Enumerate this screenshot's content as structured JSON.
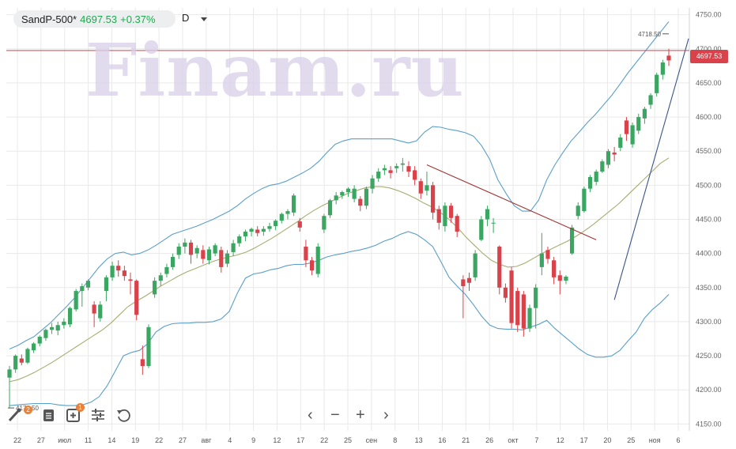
{
  "header": {
    "symbol": "SandP-500*",
    "price": "4697.53",
    "change": "+0.37%",
    "timeframe": "D"
  },
  "watermark": "Finam.ru",
  "colors": {
    "up": "#3aa661",
    "down": "#d9424a",
    "bollinger": "#5a9fc8",
    "ma": "#a5ad70",
    "trend_down": "#a03434",
    "trend_up": "#3a5588",
    "price_line": "#d9424a",
    "grid": "#e9e9e9"
  },
  "toolbar": {
    "badge_left": "2",
    "badge_mid": "1",
    "zoom_out": "−",
    "zoom_in": "+",
    "prev": "‹",
    "next": "›"
  },
  "chart_data": {
    "type": "candlestick",
    "y_ticks": [
      "4750.00",
      "4700.00",
      "4650.00",
      "4600.00",
      "4550.00",
      "4500.00",
      "4450.00",
      "4400.00",
      "4350.00",
      "4300.00",
      "4250.00",
      "4200.00",
      "4150.00"
    ],
    "ylim": [
      4140,
      4760
    ],
    "x_labels": [
      "22",
      "27",
      "июл",
      "11",
      "14",
      "19",
      "22",
      "27",
      "авг",
      "4",
      "9",
      "12",
      "17",
      "22",
      "25",
      "сен",
      "8",
      "13",
      "16",
      "21",
      "26",
      "окт",
      "7",
      "12",
      "17",
      "20",
      "25",
      "ноя",
      "6"
    ],
    "current_price_label": "4697.53",
    "high_marker_label": "4718.50",
    "low_marker_label": "4173.50",
    "candles": [
      [
        4218,
        4230,
        4173,
        4235
      ],
      [
        4230,
        4250,
        4225,
        4252
      ],
      [
        4246,
        4240,
        4236,
        4252
      ],
      [
        4240,
        4260,
        4238,
        4262
      ],
      [
        4258,
        4268,
        4254,
        4270
      ],
      [
        4268,
        4278,
        4264,
        4280
      ],
      [
        4276,
        4288,
        4272,
        4290
      ],
      [
        4288,
        4292,
        4282,
        4298
      ],
      [
        4287,
        4295,
        4280,
        4300
      ],
      [
        4295,
        4300,
        4290,
        4305
      ],
      [
        4296,
        4320,
        4292,
        4322
      ],
      [
        4318,
        4345,
        4315,
        4348
      ],
      [
        4345,
        4352,
        4322,
        4356
      ],
      [
        4350,
        4360,
        4346,
        4362
      ],
      [
        4325,
        4312,
        4292,
        4330
      ],
      [
        4305,
        4325,
        4300,
        4330
      ],
      [
        4345,
        4365,
        4330,
        4368
      ],
      [
        4365,
        4382,
        4360,
        4388
      ],
      [
        4382,
        4375,
        4366,
        4390
      ],
      [
        4375,
        4367,
        4360,
        4382
      ],
      [
        4362,
        4360,
        4340,
        4372
      ],
      [
        4360,
        4310,
        4302,
        4362
      ],
      [
        4245,
        4235,
        4222,
        4265
      ],
      [
        4235,
        4292,
        4232,
        4296
      ],
      [
        4340,
        4360,
        4335,
        4365
      ],
      [
        4360,
        4368,
        4352,
        4372
      ],
      [
        4370,
        4380,
        4365,
        4385
      ],
      [
        4380,
        4395,
        4376,
        4400
      ],
      [
        4398,
        4410,
        4392,
        4415
      ],
      [
        4410,
        4416,
        4400,
        4422
      ],
      [
        4416,
        4398,
        4385,
        4420
      ],
      [
        4400,
        4408,
        4393,
        4412
      ],
      [
        4405,
        4392,
        4385,
        4412
      ],
      [
        4390,
        4406,
        4384,
        4410
      ],
      [
        4400,
        4412,
        4396,
        4415
      ],
      [
        4405,
        4380,
        4372,
        4410
      ],
      [
        4385,
        4400,
        4380,
        4405
      ],
      [
        4402,
        4415,
        4396,
        4420
      ],
      [
        4415,
        4425,
        4410,
        4428
      ],
      [
        4425,
        4432,
        4418,
        4435
      ],
      [
        4432,
        4436,
        4425,
        4438
      ],
      [
        4435,
        4430,
        4425,
        4440
      ],
      [
        4432,
        4436,
        4426,
        4440
      ],
      [
        4436,
        4440,
        4432,
        4445
      ],
      [
        4440,
        4448,
        4434,
        4450
      ],
      [
        4448,
        4458,
        4444,
        4460
      ],
      [
        4458,
        4462,
        4450,
        4465
      ],
      [
        4460,
        4485,
        4455,
        4488
      ],
      [
        4447,
        4438,
        4432,
        4452
      ],
      [
        4410,
        4390,
        4380,
        4420
      ],
      [
        4390,
        4375,
        4368,
        4395
      ],
      [
        4370,
        4410,
        4365,
        4415
      ],
      [
        4435,
        4455,
        4430,
        4458
      ],
      [
        4456,
        4478,
        4452,
        4480
      ],
      [
        4478,
        4485,
        4472,
        4490
      ],
      [
        4485,
        4490,
        4480,
        4492
      ],
      [
        4490,
        4495,
        4483,
        4497
      ],
      [
        4480,
        4495,
        4475,
        4500
      ],
      [
        4480,
        4470,
        4462,
        4484
      ],
      [
        4470,
        4495,
        4465,
        4498
      ],
      [
        4495,
        4510,
        4488,
        4515
      ],
      [
        4510,
        4520,
        4505,
        4525
      ],
      [
        4522,
        4525,
        4515,
        4530
      ],
      [
        4522,
        4518,
        4510,
        4528
      ],
      [
        4525,
        4528,
        4518,
        4532
      ],
      [
        4530,
        4532,
        4520,
        4540
      ],
      [
        4528,
        4520,
        4512,
        4535
      ],
      [
        4522,
        4508,
        4500,
        4528
      ],
      [
        4506,
        4488,
        4480,
        4510
      ],
      [
        4492,
        4500,
        4485,
        4520
      ],
      [
        4500,
        4460,
        4450,
        4505
      ],
      [
        4465,
        4445,
        4435,
        4470
      ],
      [
        4440,
        4470,
        4432,
        4475
      ],
      [
        4470,
        4452,
        4445,
        4474
      ],
      [
        4455,
        4432,
        4424,
        4458
      ],
      [
        4362,
        4352,
        4305,
        4368
      ],
      [
        4364,
        4357,
        4345,
        4372
      ],
      [
        4365,
        4400,
        4360,
        4405
      ],
      [
        4420,
        4450,
        4418,
        4455
      ],
      [
        4450,
        4465,
        4440,
        4470
      ],
      [
        4445,
        4445,
        4430,
        4452
      ],
      [
        4410,
        4350,
        4340,
        4412
      ],
      [
        4350,
        4335,
        4328,
        4356
      ],
      [
        4375,
        4298,
        4290,
        4380
      ],
      [
        4345,
        4295,
        4285,
        4350
      ],
      [
        4340,
        4290,
        4278,
        4345
      ],
      [
        4290,
        4320,
        4285,
        4325
      ],
      [
        4320,
        4350,
        4290,
        4355
      ],
      [
        4380,
        4400,
        4368,
        4430
      ],
      [
        4405,
        4392,
        4385,
        4410
      ],
      [
        4390,
        4365,
        4355,
        4395
      ],
      [
        4368,
        4360,
        4340,
        4375
      ],
      [
        4360,
        4366,
        4355,
        4368
      ],
      [
        4400,
        4438,
        4398,
        4442
      ],
      [
        4455,
        4470,
        4450,
        4475
      ],
      [
        4462,
        4495,
        4460,
        4498
      ],
      [
        4495,
        4512,
        4490,
        4515
      ],
      [
        4505,
        4520,
        4500,
        4523
      ],
      [
        4520,
        4535,
        4518,
        4538
      ],
      [
        4530,
        4550,
        4525,
        4553
      ],
      [
        4548,
        4545,
        4535,
        4556
      ],
      [
        4555,
        4570,
        4550,
        4575
      ],
      [
        4595,
        4575,
        4565,
        4600
      ],
      [
        4560,
        4588,
        4555,
        4592
      ],
      [
        4580,
        4600,
        4575,
        4605
      ],
      [
        4598,
        4612,
        4590,
        4615
      ],
      [
        4618,
        4632,
        4612,
        4635
      ],
      [
        4635,
        4662,
        4630,
        4665
      ],
      [
        4662,
        4680,
        4655,
        4684
      ],
      [
        4690,
        4683,
        4675,
        4700
      ]
    ],
    "bollinger_upper": [
      4260,
      4265,
      4272,
      4278,
      4288,
      4298,
      4310,
      4322,
      4335,
      4350,
      4365,
      4380,
      4392,
      4400,
      4402,
      4398,
      4400,
      4405,
      4412,
      4420,
      4428,
      4432,
      4436,
      4440,
      4445,
      4450,
      4456,
      4462,
      4470,
      4480,
      4488,
      4495,
      4500,
      4502,
      4506,
      4512,
      4518,
      4525,
      4535,
      4548,
      4560,
      4565,
      4568,
      4568,
      4568,
      4568,
      4568,
      4568,
      4565,
      4562,
      4565,
      4578,
      4586,
      4585,
      4582,
      4580,
      4577,
      4572,
      4558,
      4538,
      4508,
      4488,
      4470,
      4462,
      4462,
      4478,
      4508,
      4530,
      4548,
      4565,
      4578,
      4592,
      4604,
      4618,
      4632,
      4648,
      4665,
      4680,
      4695,
      4710,
      4725,
      4740
    ],
    "bollinger_lower": [
      4177,
      4178,
      4179,
      4180,
      4180,
      4180,
      4178,
      4177,
      4177,
      4178,
      4182,
      4190,
      4206,
      4228,
      4250,
      4255,
      4258,
      4268,
      4285,
      4293,
      4297,
      4298,
      4298,
      4299,
      4299,
      4300,
      4304,
      4315,
      4342,
      4364,
      4370,
      4372,
      4376,
      4378,
      4382,
      4384,
      4384,
      4386,
      4390,
      4395,
      4398,
      4400,
      4403,
      4405,
      4408,
      4412,
      4418,
      4422,
      4428,
      4432,
      4428,
      4420,
      4410,
      4388,
      4365,
      4352,
      4340,
      4325,
      4308,
      4295,
      4290,
      4289,
      4289,
      4288,
      4292,
      4296,
      4302,
      4290,
      4280,
      4270,
      4260,
      4252,
      4248,
      4248,
      4250,
      4258,
      4272,
      4285,
      4305,
      4318,
      4328,
      4340
    ],
    "moving_average": [
      4212,
      4215,
      4220,
      4226,
      4233,
      4240,
      4248,
      4256,
      4264,
      4272,
      4280,
      4288,
      4298,
      4310,
      4322,
      4330,
      4337,
      4345,
      4353,
      4360,
      4367,
      4373,
      4378,
      4383,
      4388,
      4392,
      4395,
      4398,
      4402,
      4408,
      4415,
      4422,
      4430,
      4438,
      4446,
      4455,
      4463,
      4470,
      4476,
      4482,
      4488,
      4492,
      4496,
      4498,
      4498,
      4496,
      4492,
      4487,
      4481,
      4474,
      4468,
      4460,
      4450,
      4438,
      4424,
      4412,
      4400,
      4390,
      4384,
      4380,
      4381,
      4386,
      4393,
      4400,
      4406,
      4412,
      4418,
      4425,
      4433,
      4442,
      4452,
      4462,
      4472,
      4484,
      4496,
      4508,
      4520,
      4532,
      4540
    ],
    "trend_lines": [
      {
        "from": [
          4530
        ],
        "to": [
          4420
        ]
      },
      {
        "from": [
          4332
        ],
        "to": [
          4715
        ]
      }
    ]
  }
}
